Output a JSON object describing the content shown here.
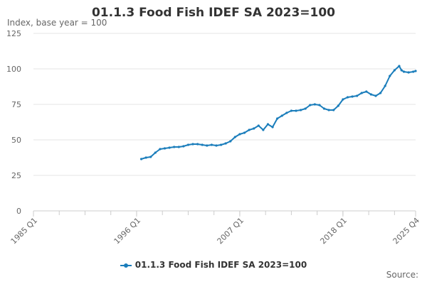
{
  "chart_data": {
    "type": "line",
    "title": "01.1.3 Food Fish IDEF SA 2023=100",
    "ylabel": "Index, base year = 100",
    "xlabel": "",
    "ylim": [
      0,
      125
    ],
    "yticks": [
      "0",
      "25",
      "50",
      "75",
      "100",
      "125"
    ],
    "xticks": [
      "1985 Q1",
      "1996 Q1",
      "2007 Q1",
      "2018 Q1",
      "2025 Q4"
    ],
    "grid": "horizontal",
    "legend_position": "bottom",
    "series": [
      {
        "name": "01.1.3 Food Fish IDEF SA 2023=100",
        "color": "#1a7dbb",
        "points": [
          [
            "1996 Q3",
            36.5
          ],
          [
            "1997 Q1",
            37.5
          ],
          [
            "1997 Q3",
            38.0
          ],
          [
            "1998 Q1",
            41.0
          ],
          [
            "1998 Q3",
            43.5
          ],
          [
            "1999 Q1",
            44.0
          ],
          [
            "1999 Q3",
            44.5
          ],
          [
            "2000 Q1",
            45.0
          ],
          [
            "2000 Q3",
            45.0
          ],
          [
            "2001 Q1",
            45.5
          ],
          [
            "2001 Q3",
            46.5
          ],
          [
            "2002 Q1",
            47.0
          ],
          [
            "2002 Q3",
            47.0
          ],
          [
            "2003 Q1",
            46.5
          ],
          [
            "2003 Q3",
            46.0
          ],
          [
            "2004 Q1",
            46.5
          ],
          [
            "2004 Q3",
            46.0
          ],
          [
            "2005 Q1",
            46.5
          ],
          [
            "2005 Q3",
            47.5
          ],
          [
            "2006 Q1",
            49.0
          ],
          [
            "2006 Q3",
            52.0
          ],
          [
            "2007 Q1",
            54.0
          ],
          [
            "2007 Q3",
            55.0
          ],
          [
            "2008 Q1",
            57.0
          ],
          [
            "2008 Q3",
            58.0
          ],
          [
            "2009 Q1",
            60.0
          ],
          [
            "2009 Q3",
            57.0
          ],
          [
            "2010 Q1",
            61.0
          ],
          [
            "2010 Q3",
            59.0
          ],
          [
            "2011 Q1",
            65.0
          ],
          [
            "2011 Q3",
            67.0
          ],
          [
            "2012 Q1",
            69.0
          ],
          [
            "2012 Q3",
            70.5
          ],
          [
            "2013 Q1",
            70.5
          ],
          [
            "2013 Q3",
            71.0
          ],
          [
            "2014 Q1",
            72.0
          ],
          [
            "2014 Q3",
            74.5
          ],
          [
            "2015 Q1",
            75.0
          ],
          [
            "2015 Q3",
            74.5
          ],
          [
            "2016 Q1",
            72.0
          ],
          [
            "2016 Q3",
            71.0
          ],
          [
            "2017 Q1",
            71.0
          ],
          [
            "2017 Q3",
            74.0
          ],
          [
            "2018 Q1",
            78.5
          ],
          [
            "2018 Q3",
            80.0
          ],
          [
            "2019 Q1",
            80.5
          ],
          [
            "2019 Q3",
            81.0
          ],
          [
            "2020 Q1",
            83.0
          ],
          [
            "2020 Q3",
            84.0
          ],
          [
            "2021 Q1",
            82.0
          ],
          [
            "2021 Q3",
            81.0
          ],
          [
            "2022 Q1",
            83.0
          ],
          [
            "2022 Q3",
            88.0
          ],
          [
            "2023 Q1",
            95.0
          ],
          [
            "2023 Q3",
            99.0
          ],
          [
            "2024 Q1",
            102.0
          ],
          [
            "2024 Q2",
            99.0
          ],
          [
            "2024 Q3",
            98.0
          ],
          [
            "2025 Q1",
            97.5
          ],
          [
            "2025 Q3",
            98.0
          ],
          [
            "2025 Q4",
            98.5
          ]
        ]
      }
    ]
  },
  "legend": {
    "label": "01.1.3 Food Fish IDEF SA 2023=100"
  },
  "footer": {
    "source_label": "Source:"
  }
}
